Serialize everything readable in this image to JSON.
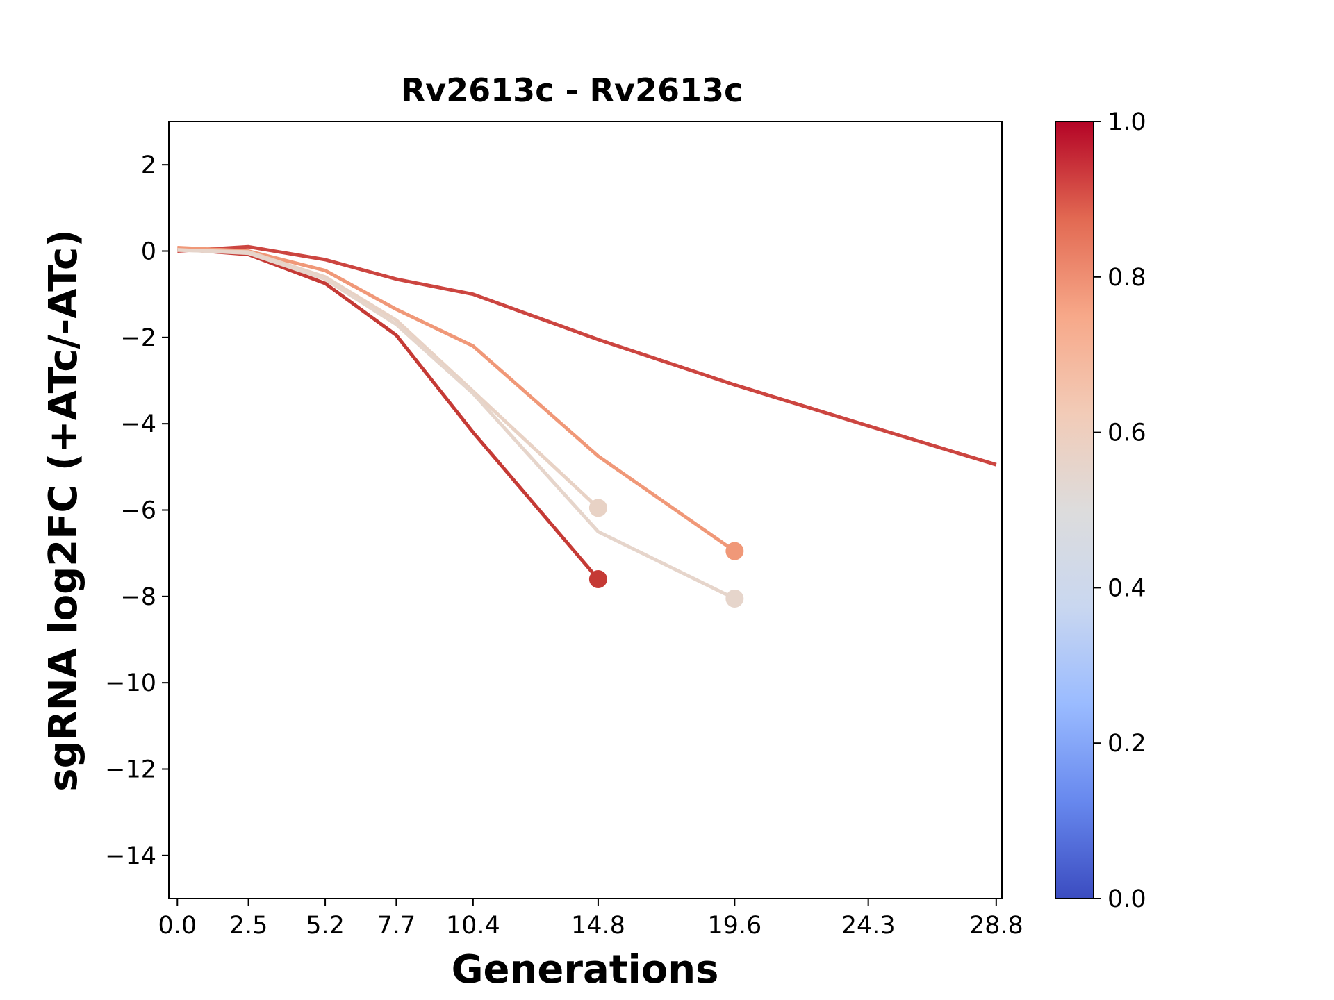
{
  "chart_data": {
    "type": "line",
    "title": "Rv2613c - Rv2613c",
    "xlabel": "Generations",
    "ylabel": "sgRNA log2FC (+ATc/-ATc)",
    "xlim": [
      -0.3,
      29
    ],
    "ylim": [
      -15,
      3
    ],
    "xticks": [
      0.0,
      2.5,
      5.2,
      7.7,
      10.4,
      14.8,
      19.6,
      24.3,
      28.8
    ],
    "xtick_labels": [
      "0.0",
      "2.5",
      "5.2",
      "7.7",
      "10.4",
      "14.8",
      "19.6",
      "24.3",
      "28.8"
    ],
    "yticks": [
      2,
      0,
      -2,
      -4,
      -6,
      -8,
      -10,
      -12,
      -14
    ],
    "ytick_labels": [
      "2",
      "0",
      "−2",
      "−4",
      "−6",
      "−8",
      "−10",
      "−12",
      "−14"
    ],
    "grid": false,
    "colorbar": {
      "colormap": "coolwarm",
      "range": [
        0.0,
        1.0
      ],
      "ticks": [
        0.0,
        0.2,
        0.4,
        0.6,
        0.8,
        1.0
      ],
      "tick_labels": [
        "0.0",
        "0.2",
        "0.4",
        "0.6",
        "0.8",
        "1.0"
      ],
      "stops": [
        "#3b4cc0",
        "#6788ee",
        "#9abbff",
        "#c9d7f0",
        "#dddcdc",
        "#f2cbb7",
        "#f7a889",
        "#e26952",
        "#b40426"
      ]
    },
    "series": [
      {
        "color": "#cc4540",
        "x": [
          0.0,
          2.5,
          5.2,
          7.7,
          10.4,
          14.8,
          19.6,
          24.3,
          28.8
        ],
        "y": [
          0.0,
          0.1,
          -0.2,
          -0.65,
          -1.0,
          -2.05,
          -3.1,
          -4.05,
          -4.95
        ],
        "end_marker": false
      },
      {
        "color": "#c53a35",
        "x": [
          0.0,
          2.5,
          5.2,
          7.7,
          10.4,
          14.8
        ],
        "y": [
          0.05,
          -0.08,
          -0.75,
          -1.95,
          -4.2,
          -7.6
        ],
        "end_marker": true
      },
      {
        "color": "#f09878",
        "x": [
          0.0,
          2.5,
          5.2,
          7.7,
          10.4,
          14.8,
          19.6
        ],
        "y": [
          0.08,
          0.0,
          -0.45,
          -1.35,
          -2.2,
          -4.75,
          -6.95
        ],
        "end_marker": true
      },
      {
        "color": "#e8d2c5",
        "x": [
          0.0,
          2.5,
          5.2,
          7.7,
          10.4,
          14.8
        ],
        "y": [
          0.02,
          -0.02,
          -0.6,
          -1.6,
          -3.25,
          -5.95
        ],
        "end_marker": true
      },
      {
        "color": "#e6d5cb",
        "x": [
          0.0,
          2.5,
          5.2,
          7.7,
          10.4,
          14.8,
          19.6
        ],
        "y": [
          0.03,
          -0.05,
          -0.65,
          -1.7,
          -3.3,
          -6.5,
          -8.05
        ],
        "end_marker": true
      }
    ]
  }
}
